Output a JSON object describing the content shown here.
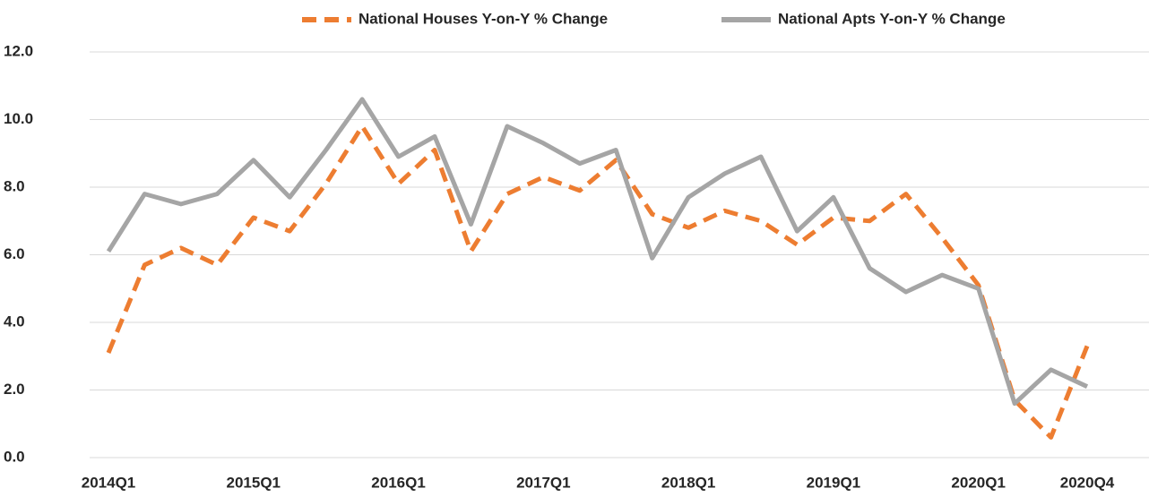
{
  "chart_data": {
    "type": "line",
    "categories": [
      "2014Q1",
      null,
      null,
      null,
      "2015Q1",
      null,
      null,
      null,
      "2016Q1",
      null,
      null,
      null,
      "2017Q1",
      null,
      null,
      null,
      "2018Q1",
      null,
      null,
      null,
      "2019Q1",
      null,
      null,
      null,
      "2020Q1",
      null,
      null,
      "2020Q4"
    ],
    "series": [
      {
        "name": "National Houses Y-on-Y % Change",
        "color": "#ed7d31",
        "dashed": true,
        "values": [
          3.1,
          5.7,
          6.2,
          5.7,
          7.1,
          6.7,
          8.1,
          9.8,
          8.1,
          9.1,
          6.1,
          7.8,
          8.3,
          7.9,
          8.8,
          7.2,
          6.8,
          7.3,
          7.0,
          6.3,
          7.1,
          7.0,
          7.8,
          6.5,
          5.1,
          1.7,
          0.6,
          3.3
        ]
      },
      {
        "name": "National Apts Y-on-Y % Change",
        "color": "#a5a5a5",
        "dashed": false,
        "values": [
          6.1,
          7.8,
          7.5,
          7.8,
          8.8,
          7.7,
          9.1,
          10.6,
          8.9,
          9.5,
          6.9,
          9.8,
          9.3,
          8.7,
          9.1,
          5.9,
          7.7,
          8.4,
          8.9,
          6.7,
          7.7,
          5.6,
          4.9,
          5.4,
          5.0,
          1.6,
          2.6,
          2.1
        ]
      }
    ],
    "ylim": [
      0,
      12
    ],
    "yticks": [
      {
        "value": 0,
        "label": "0.0"
      },
      {
        "value": 2,
        "label": "2.0"
      },
      {
        "value": 4,
        "label": "4.0"
      },
      {
        "value": 6,
        "label": "6.0"
      },
      {
        "value": 8,
        "label": "8.0"
      },
      {
        "value": 10,
        "label": "10.0"
      },
      {
        "value": 12,
        "label": "12.0"
      }
    ],
    "grid": true,
    "legend": "top"
  }
}
